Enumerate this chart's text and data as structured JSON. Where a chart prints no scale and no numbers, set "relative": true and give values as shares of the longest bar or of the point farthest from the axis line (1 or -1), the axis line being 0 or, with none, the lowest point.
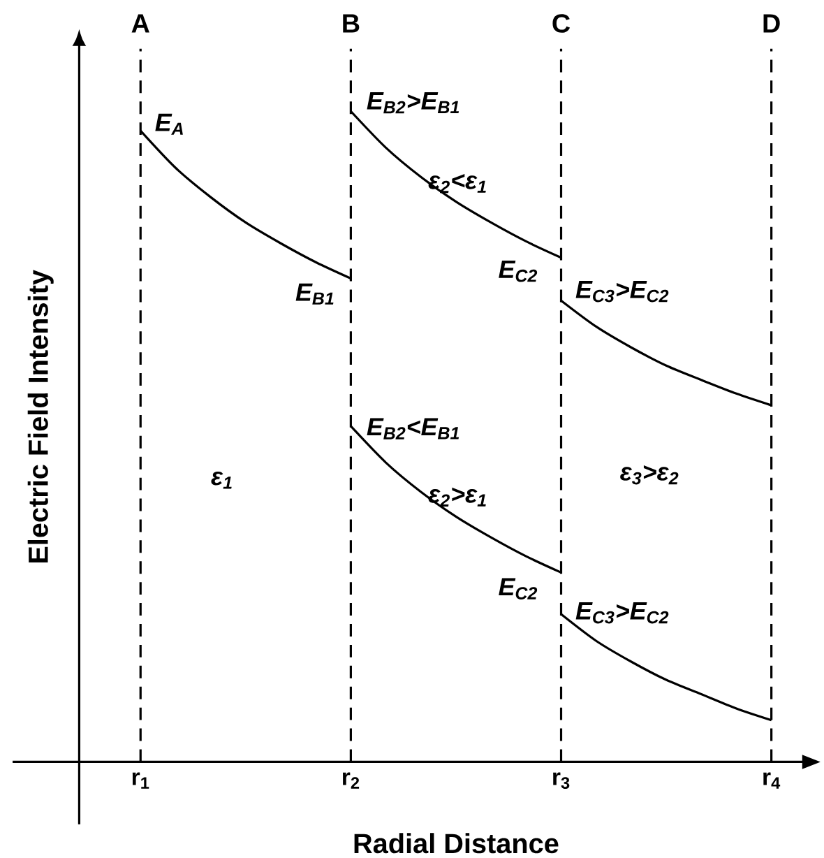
{
  "chart_data": {
    "type": "line",
    "relative": true,
    "xlabel": "Radial Distance",
    "ylabel": "Electric Field Intensity",
    "categories": [
      "r$_{1}$",
      null,
      null,
      null,
      null,
      null,
      "r$_{2}$",
      null,
      null,
      null,
      null,
      null,
      "r$_{3}$",
      null,
      null,
      null,
      null,
      null,
      "r$_{4}$"
    ],
    "series": [
      {
        "color": "#000000",
        "values": [
          0.97,
          0.913,
          0.868,
          0.829,
          0.797,
          0.768,
          0.743,
          null,
          null,
          null,
          null,
          null,
          null,
          null,
          null,
          null,
          null,
          null,
          null
        ]
      },
      {
        "color": "#000000",
        "values": [
          null,
          null,
          null,
          null,
          null,
          null,
          1.0,
          0.944,
          0.899,
          0.861,
          0.829,
          0.8,
          0.775,
          null,
          null,
          null,
          null,
          null,
          null
        ]
      },
      {
        "color": "#000000",
        "values": [
          null,
          null,
          null,
          null,
          null,
          null,
          null,
          null,
          null,
          null,
          null,
          null,
          0.709,
          0.669,
          0.637,
          0.609,
          0.587,
          0.566,
          0.548
        ]
      },
      {
        "color": "#000000",
        "values": [
          null,
          null,
          null,
          null,
          null,
          null,
          0.516,
          0.46,
          0.415,
          0.377,
          0.345,
          0.316,
          0.291,
          null,
          null,
          null,
          null,
          null,
          null
        ]
      },
      {
        "color": "#000000",
        "values": [
          null,
          null,
          null,
          null,
          null,
          null,
          null,
          null,
          null,
          null,
          null,
          null,
          0.227,
          0.186,
          0.154,
          0.126,
          0.104,
          0.082,
          0.064
        ]
      }
    ],
    "ref_lines": [
      {
        "axis": "x",
        "value": "r$_{1}$",
        "label": "A",
        "color": "#000000",
        "line_style": "dashed"
      },
      {
        "axis": "x",
        "value": "r$_{2}$",
        "label": "B",
        "color": "#000000",
        "line_style": "dashed"
      },
      {
        "axis": "x",
        "value": "r$_{3}$",
        "label": "C",
        "color": "#000000",
        "line_style": "dashed"
      },
      {
        "axis": "x",
        "value": "r$_{4}$",
        "label": "D",
        "color": "#000000",
        "line_style": "dashed"
      }
    ],
    "annotations": [
      "E$_{A}$",
      "E$_{B2}$>E$_{B1}$",
      "ε$_{2}$<ε$_{1}$",
      "E$_{B1}$",
      "E$_{C2}$",
      "E$_{C3}$>E$_{C2}$",
      "E$_{B2}$<E$_{B1}$",
      "ε$_{1}$",
      "ε$_{2}$>ε$_{1}$",
      "ε$_{3}$>ε$_{2}$",
      "E$_{C2}$",
      "E$_{C3}$>E$_{C2}$"
    ],
    "marker": "none",
    "line_style": "solid"
  }
}
